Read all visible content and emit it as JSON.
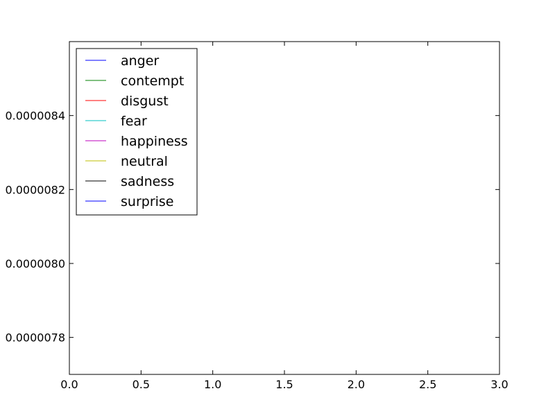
{
  "chart_data": {
    "type": "line",
    "title": "",
    "xlabel": "",
    "ylabel": "",
    "xlim": [
      0.0,
      3.0
    ],
    "ylim": [
      7.7e-06,
      8.6e-06
    ],
    "x_ticks": [
      0.0,
      0.5,
      1.0,
      1.5,
      2.0,
      2.5,
      3.0
    ],
    "x_tick_labels": [
      "0.0",
      "0.5",
      "1.0",
      "1.5",
      "2.0",
      "2.5",
      "3.0"
    ],
    "y_ticks": [
      7.8e-06,
      8e-06,
      8.2e-06,
      8.4e-06
    ],
    "y_tick_labels": [
      "0.0000078",
      "0.0000080",
      "0.0000082",
      "0.0000084"
    ],
    "grid": false,
    "legend_position": "top-left",
    "series": [
      {
        "name": "anger",
        "color": "#0000ff",
        "values": []
      },
      {
        "name": "contempt",
        "color": "#008000",
        "values": []
      },
      {
        "name": "disgust",
        "color": "#ff0000",
        "values": []
      },
      {
        "name": "fear",
        "color": "#00bfbf",
        "values": []
      },
      {
        "name": "happiness",
        "color": "#bf00bf",
        "values": []
      },
      {
        "name": "neutral",
        "color": "#bfbf00",
        "values": []
      },
      {
        "name": "sadness",
        "color": "#000000",
        "values": []
      },
      {
        "name": "surprise",
        "color": "#0000ff",
        "values": []
      }
    ]
  }
}
